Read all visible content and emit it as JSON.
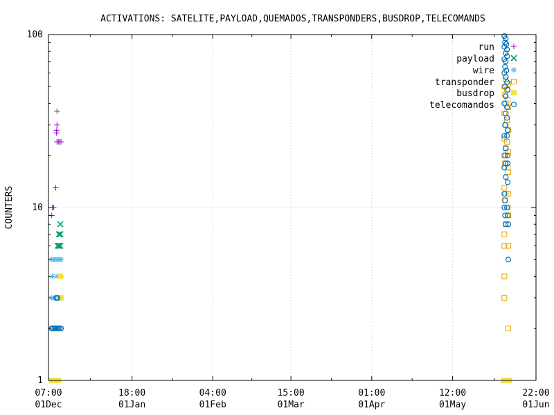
{
  "chart_data": {
    "type": "scatter",
    "title": "ACTIVATIONS: SATELITE,PAYLOAD,QUEMADOS,TRANSPONDERS,BUSDROP,TELECOMANDS",
    "ylabel": "COUNTERS",
    "xlabel": "",
    "ylim": [
      1,
      100
    ],
    "yscale": "log",
    "grid": true,
    "legend_position": "top-right",
    "xlim": [
      "2023-12-01T07:00",
      "2024-06-01T22:00"
    ],
    "x_ticks": [
      {
        "x": "2023-12-01T07:00",
        "time": "07:00",
        "date": "01Dec"
      },
      {
        "x": "2024-01-01T18:00",
        "time": "18:00",
        "date": "01Jan"
      },
      {
        "x": "2024-02-01T04:00",
        "time": "04:00",
        "date": "01Feb"
      },
      {
        "x": "2024-03-01T15:00",
        "time": "15:00",
        "date": "01Mar"
      },
      {
        "x": "2024-04-01T01:00",
        "time": "01:00",
        "date": "01Apr"
      },
      {
        "x": "2024-05-01T12:00",
        "time": "12:00",
        "date": "01May"
      },
      {
        "x": "2024-06-01T22:00",
        "time": "22:00",
        "date": "01Jun"
      }
    ],
    "y_ticks": [
      {
        "value": 1,
        "label": "1"
      },
      {
        "value": 10,
        "label": "10"
      },
      {
        "value": 100,
        "label": "100"
      }
    ],
    "series": [
      {
        "name": "run",
        "color": "#9400d3",
        "marker": "plus",
        "points": [
          [
            "2023-12-04T12:00",
            36
          ],
          [
            "2023-12-04T12:00",
            30
          ],
          [
            "2023-12-04T10:00",
            28
          ],
          [
            "2023-12-04T08:00",
            27
          ],
          [
            "2023-12-04T12:00",
            24
          ],
          [
            "2023-12-05T00:00",
            24
          ],
          [
            "2023-12-05T12:00",
            24
          ],
          [
            "2023-12-06T00:00",
            24
          ],
          [
            "2023-12-04T00:00",
            13
          ],
          [
            "2023-12-02T18:00",
            10
          ],
          [
            "2023-12-03T06:00",
            10
          ],
          [
            "2023-12-02T12:00",
            9
          ]
        ]
      },
      {
        "name": "payload",
        "color": "#009e73",
        "marker": "cross",
        "points": [
          [
            "2023-12-05T18:00",
            8
          ],
          [
            "2023-12-05T06:00",
            7
          ],
          [
            "2023-12-05T18:00",
            7
          ],
          [
            "2023-12-04T18:00",
            6
          ],
          [
            "2023-12-05T06:00",
            6
          ],
          [
            "2023-12-05T18:00",
            6
          ]
        ]
      },
      {
        "name": "wire",
        "color": "#56b4e9",
        "marker": "star",
        "points": [
          [
            "2023-12-02T12:00",
            5
          ],
          [
            "2023-12-03T12:00",
            5
          ],
          [
            "2023-12-04T12:00",
            5
          ],
          [
            "2023-12-05T12:00",
            5
          ],
          [
            "2023-12-06T00:00",
            5
          ],
          [
            "2023-12-02T18:00",
            4
          ],
          [
            "2023-12-04T12:00",
            4
          ],
          [
            "2023-12-06T00:00",
            4
          ],
          [
            "2023-12-02T12:00",
            3
          ],
          [
            "2023-12-03T12:00",
            3
          ],
          [
            "2023-12-05T00:00",
            3
          ]
        ]
      },
      {
        "name": "transponder",
        "color": "#e69f00",
        "marker": "square",
        "points": [
          [
            "2024-05-21T12:00",
            55
          ],
          [
            "2024-05-22T12:00",
            52
          ],
          [
            "2024-05-21T00:00",
            50
          ],
          [
            "2024-05-22T00:00",
            48
          ],
          [
            "2024-05-21T06:00",
            45
          ],
          [
            "2024-05-22T06:00",
            42
          ],
          [
            "2024-05-21T12:00",
            40
          ],
          [
            "2024-05-22T12:00",
            38
          ],
          [
            "2024-05-21T00:00",
            35
          ],
          [
            "2024-05-22T00:00",
            32
          ],
          [
            "2024-05-21T12:00",
            30
          ],
          [
            "2024-05-22T12:00",
            28
          ],
          [
            "2024-05-21T00:00",
            25
          ],
          [
            "2024-05-22T00:00",
            24
          ],
          [
            "2024-05-21T12:00",
            22
          ],
          [
            "2024-05-22T12:00",
            21
          ],
          [
            "2024-05-21T00:00",
            20
          ],
          [
            "2024-05-21T06:00",
            18
          ],
          [
            "2024-05-22T06:00",
            17
          ],
          [
            "2024-05-22T12:00",
            16
          ],
          [
            "2024-05-21T00:00",
            13
          ],
          [
            "2024-05-21T12:00",
            12
          ],
          [
            "2024-05-22T12:00",
            12
          ],
          [
            "2024-05-21T06:00",
            11
          ],
          [
            "2024-05-22T06:00",
            10
          ],
          [
            "2024-05-22T12:00",
            9
          ],
          [
            "2024-05-21T12:00",
            8
          ],
          [
            "2024-05-21T00:00",
            7
          ],
          [
            "2024-05-21T00:00",
            6
          ],
          [
            "2024-05-22T12:00",
            6
          ],
          [
            "2024-05-21T00:00",
            4
          ],
          [
            "2024-05-21T00:00",
            3
          ],
          [
            "2024-05-22T12:00",
            2
          ]
        ]
      },
      {
        "name": "busdrop",
        "color": "#f0e442",
        "marker": "square-filled",
        "points": [
          [
            "2023-12-02T12:00",
            1
          ],
          [
            "2023-12-03T00:00",
            1
          ],
          [
            "2023-12-03T12:00",
            1
          ],
          [
            "2023-12-04T00:00",
            1
          ],
          [
            "2023-12-04T12:00",
            1
          ],
          [
            "2023-12-05T00:00",
            1
          ],
          [
            "2023-12-05T18:00",
            4
          ],
          [
            "2023-12-05T12:00",
            3
          ],
          [
            "2023-12-06T00:00",
            3
          ],
          [
            "2024-05-20T18:00",
            1
          ],
          [
            "2024-05-21T06:00",
            1
          ],
          [
            "2024-05-21T18:00",
            1
          ],
          [
            "2024-05-22T06:00",
            1
          ],
          [
            "2024-05-22T18:00",
            1
          ]
        ]
      },
      {
        "name": "telecomandos",
        "color": "#0072b2",
        "marker": "circle",
        "points": [
          [
            "2024-05-21T00:00",
            98
          ],
          [
            "2024-05-21T12:00",
            95
          ],
          [
            "2024-05-21T06:00",
            90
          ],
          [
            "2024-05-21T18:00",
            88
          ],
          [
            "2024-05-21T00:00",
            85
          ],
          [
            "2024-05-22T00:00",
            82
          ],
          [
            "2024-05-21T12:00",
            78
          ],
          [
            "2024-05-22T00:00",
            75
          ],
          [
            "2024-05-21T00:00",
            72
          ],
          [
            "2024-05-21T12:00",
            70
          ],
          [
            "2024-05-21T06:00",
            65
          ],
          [
            "2024-05-21T18:00",
            62
          ],
          [
            "2024-05-21T00:00",
            60
          ],
          [
            "2024-05-21T12:00",
            57
          ],
          [
            "2024-05-22T00:00",
            53
          ],
          [
            "2024-05-21T06:00",
            50
          ],
          [
            "2024-05-22T06:00",
            48
          ],
          [
            "2024-05-21T12:00",
            44
          ],
          [
            "2024-05-21T00:00",
            40
          ],
          [
            "2024-05-22T00:00",
            38
          ],
          [
            "2024-05-21T12:00",
            35
          ],
          [
            "2024-05-22T00:00",
            33
          ],
          [
            "2024-05-21T06:00",
            30
          ],
          [
            "2024-05-22T06:00",
            28
          ],
          [
            "2024-05-21T00:00",
            26
          ],
          [
            "2024-05-22T00:00",
            26
          ],
          [
            "2024-05-21T12:00",
            22
          ],
          [
            "2024-05-21T06:00",
            20
          ],
          [
            "2024-05-22T06:00",
            20
          ],
          [
            "2024-05-21T12:00",
            18
          ],
          [
            "2024-05-22T06:00",
            18
          ],
          [
            "2024-05-21T00:00",
            17
          ],
          [
            "2024-05-21T12:00",
            15
          ],
          [
            "2024-05-22T06:00",
            14
          ],
          [
            "2024-05-21T00:00",
            12
          ],
          [
            "2024-05-21T06:00",
            11
          ],
          [
            "2024-05-21T00:00",
            10
          ],
          [
            "2024-05-22T00:00",
            10
          ],
          [
            "2024-05-21T06:00",
            9
          ],
          [
            "2024-05-22T06:00",
            9
          ],
          [
            "2024-05-21T12:00",
            8
          ],
          [
            "2024-05-22T12:00",
            8
          ],
          [
            "2024-05-22T12:00",
            5
          ],
          [
            "2023-12-04T06:00",
            3
          ],
          [
            "2023-12-04T18:00",
            3
          ],
          [
            "2023-12-02T12:00",
            2
          ],
          [
            "2023-12-03T00:00",
            2
          ],
          [
            "2023-12-03T12:00",
            2
          ],
          [
            "2023-12-04T00:00",
            2
          ],
          [
            "2023-12-04T12:00",
            2
          ],
          [
            "2023-12-05T00:00",
            2
          ],
          [
            "2023-12-05T12:00",
            2
          ],
          [
            "2023-12-06T00:00",
            2
          ]
        ]
      }
    ]
  }
}
